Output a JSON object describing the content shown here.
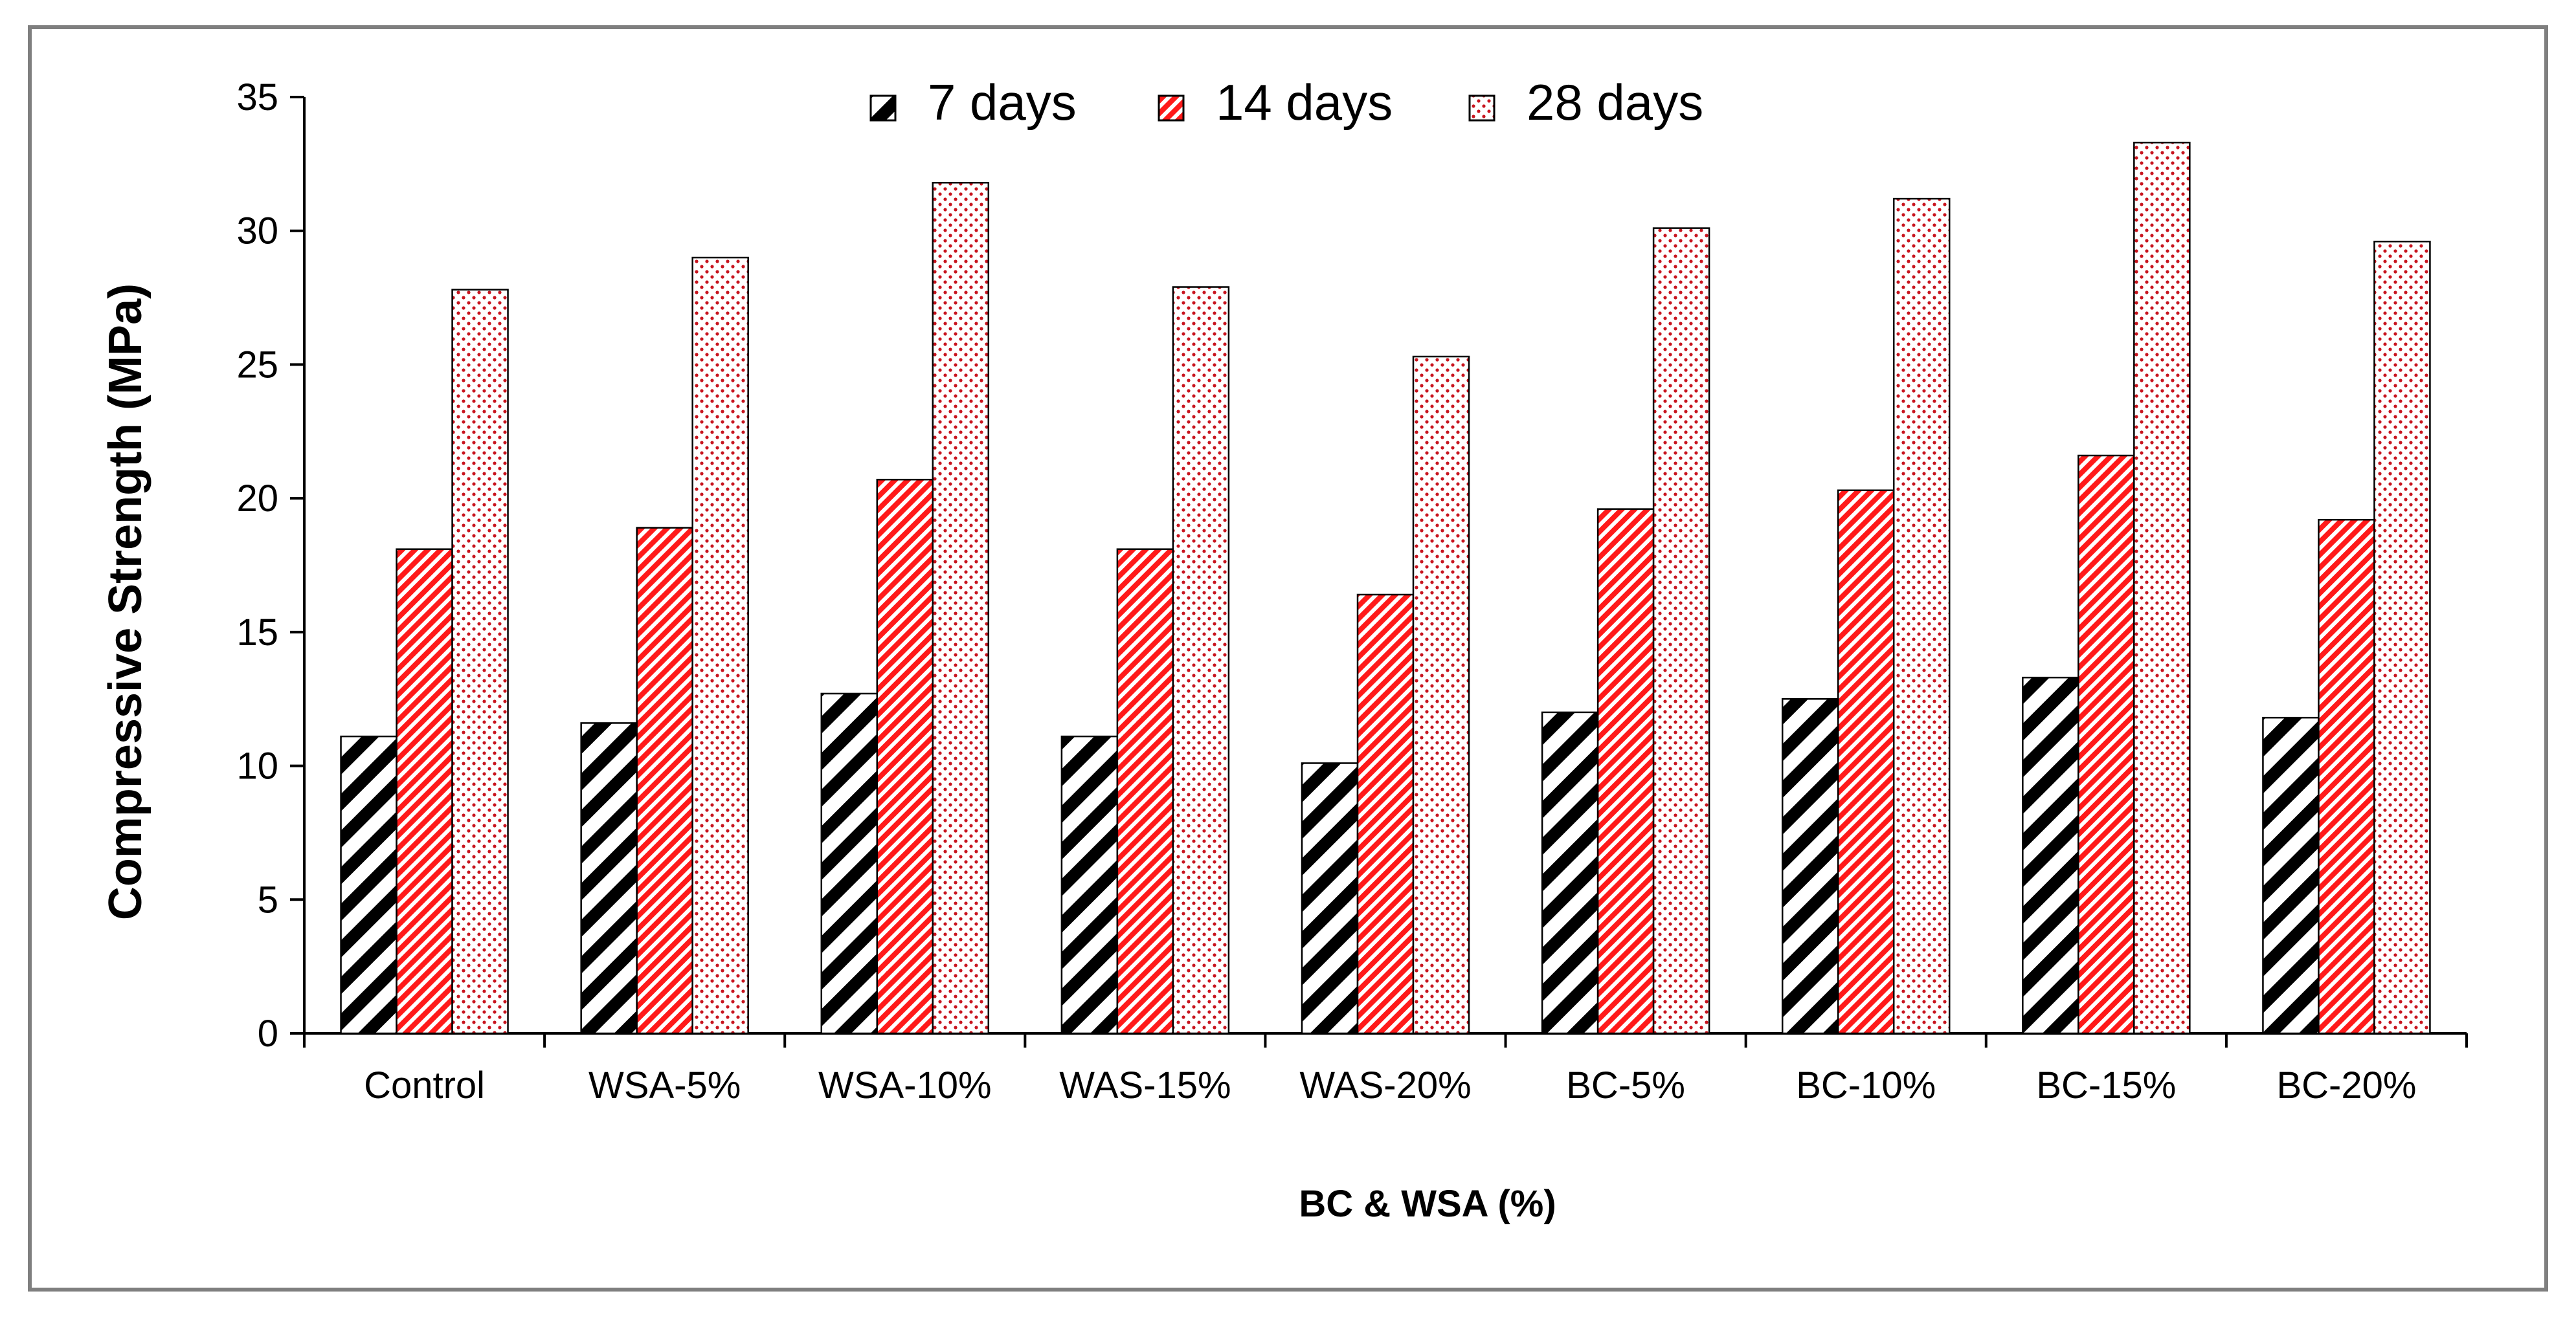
{
  "chart_data": {
    "type": "bar",
    "title": "",
    "xlabel": "BC & WSA (%)",
    "ylabel": "Compressive Strength (MPa)",
    "ylim": [
      0,
      35
    ],
    "yticks": [
      "0",
      "5",
      "10",
      "15",
      "20",
      "25",
      "30",
      "35"
    ],
    "grid": false,
    "legend_position": "top-center",
    "categories": [
      "Control",
      "WSA-5%",
      "WSA-10%",
      "WAS-15%",
      "WAS-20%",
      "BC-5%",
      "BC-10%",
      "BC-15%",
      "BC-20%"
    ],
    "series": [
      {
        "name": "7 days",
        "pattern": "black-diagonal-hatch",
        "color": "#000000",
        "values": [
          11.1,
          11.6,
          12.7,
          11.1,
          10.1,
          12.0,
          12.5,
          13.3,
          11.8
        ]
      },
      {
        "name": "14 days",
        "pattern": "red-fine-diagonal-hatch",
        "color": "#ff1a1a",
        "values": [
          18.1,
          18.9,
          20.7,
          18.1,
          16.4,
          19.6,
          20.3,
          21.6,
          19.2
        ]
      },
      {
        "name": "28 days",
        "pattern": "red-dots",
        "color": "#c8141e",
        "values": [
          27.8,
          29.0,
          31.8,
          27.9,
          25.3,
          30.1,
          31.2,
          33.3,
          29.6
        ]
      }
    ]
  }
}
